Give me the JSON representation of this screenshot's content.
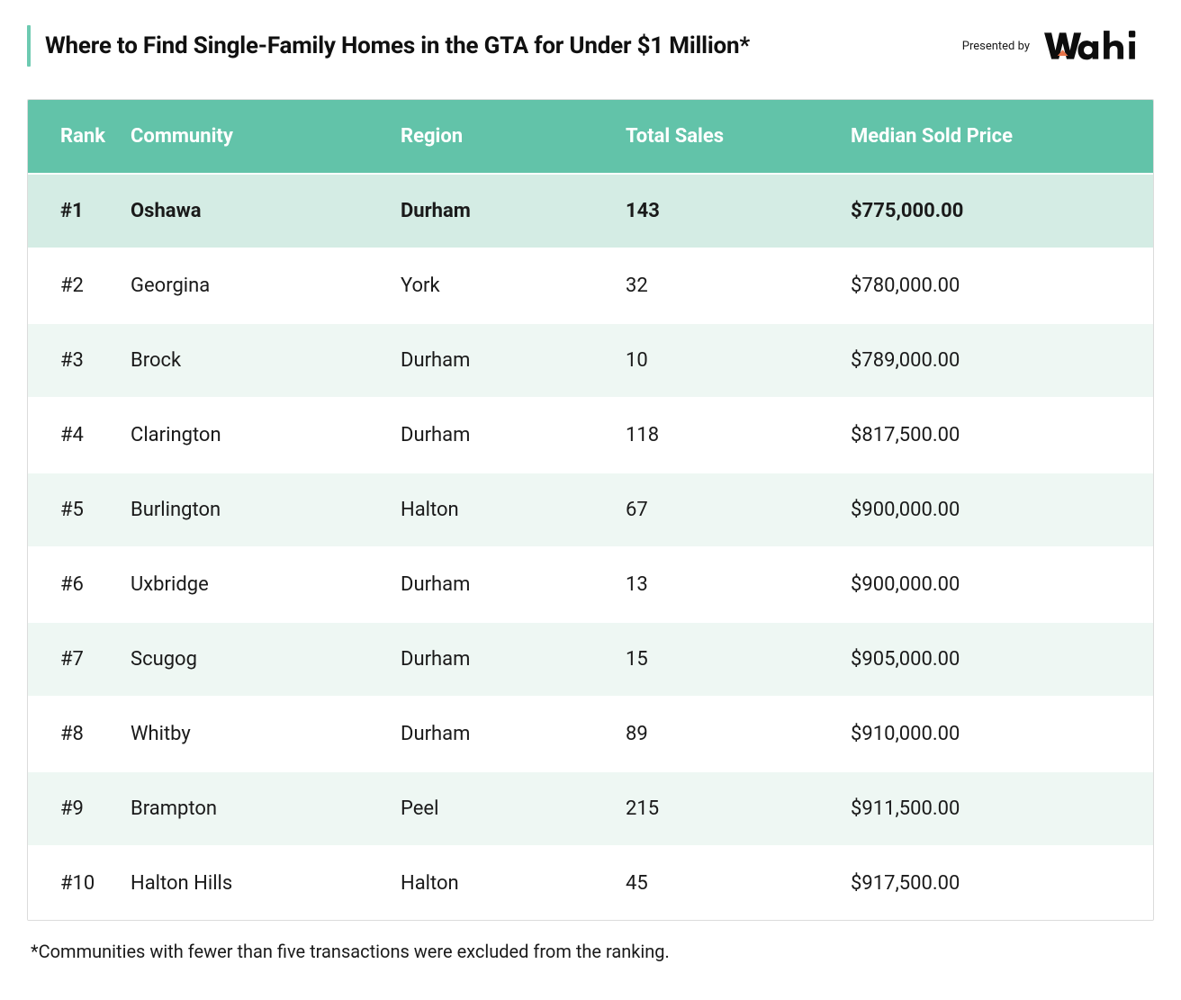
{
  "header": {
    "title": "Where to Find Single-Family Homes in the GTA for Under $1 Million*",
    "presented_label": "Presented by",
    "logo_text": "Wahi"
  },
  "table": {
    "type": "table",
    "header_bg": "#62c3a9",
    "header_text_color": "#ffffff",
    "row_highlight_bg": "#d4ece4",
    "row_alt_bg": "#eef7f3",
    "row_bg": "#ffffff",
    "border_color": "#dcdcdc",
    "font_size_header": 22,
    "font_size_cell": 22,
    "columns": [
      {
        "key": "rank",
        "label": "Rank",
        "width_pct": 8
      },
      {
        "key": "community",
        "label": "Community",
        "width_pct": 24
      },
      {
        "key": "region",
        "label": "Region",
        "width_pct": 20
      },
      {
        "key": "total_sales",
        "label": "Total Sales",
        "width_pct": 20
      },
      {
        "key": "median_price",
        "label": "Median Sold Price",
        "width_pct": 28
      }
    ],
    "rows": [
      {
        "rank": "#1",
        "community": "Oshawa",
        "region": "Durham",
        "total_sales": "143",
        "median_price": "$775,000.00",
        "highlight": true
      },
      {
        "rank": "#2",
        "community": "Georgina",
        "region": "York",
        "total_sales": "32",
        "median_price": "$780,000.00"
      },
      {
        "rank": "#3",
        "community": "Brock",
        "region": "Durham",
        "total_sales": "10",
        "median_price": "$789,000.00"
      },
      {
        "rank": "#4",
        "community": "Clarington",
        "region": "Durham",
        "total_sales": "118",
        "median_price": "$817,500.00"
      },
      {
        "rank": "#5",
        "community": "Burlington",
        "region": "Halton",
        "total_sales": "67",
        "median_price": "$900,000.00"
      },
      {
        "rank": "#6",
        "community": "Uxbridge",
        "region": "Durham",
        "total_sales": "13",
        "median_price": "$900,000.00"
      },
      {
        "rank": "#7",
        "community": "Scugog",
        "region": "Durham",
        "total_sales": "15",
        "median_price": "$905,000.00"
      },
      {
        "rank": "#8",
        "community": "Whitby",
        "region": "Durham",
        "total_sales": "89",
        "median_price": "$910,000.00"
      },
      {
        "rank": "#9",
        "community": "Brampton",
        "region": "Peel",
        "total_sales": "215",
        "median_price": "$911,500.00"
      },
      {
        "rank": "#10",
        "community": "Halton Hills",
        "region": "Halton",
        "total_sales": "45",
        "median_price": "$917,500.00"
      }
    ]
  },
  "footnote": "*Communities with fewer than five transactions were excluded from the ranking.",
  "colors": {
    "accent_bar": "#6dcab1",
    "title_text": "#101010",
    "body_text": "#1a1a1a",
    "logo_accent": "#e8754b"
  }
}
